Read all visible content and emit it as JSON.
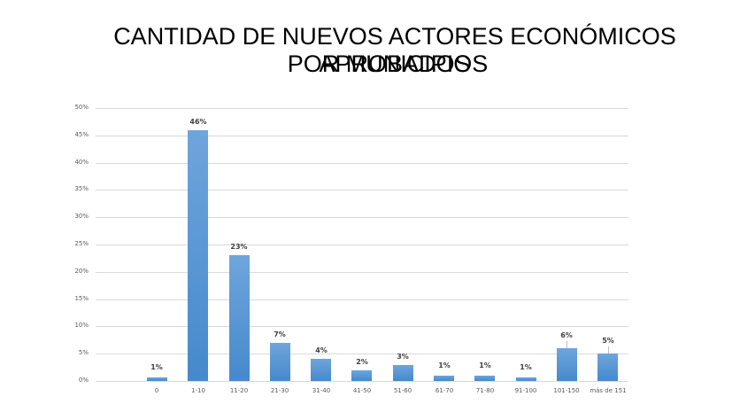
{
  "title": {
    "line1": "CANTIDAD DE NUEVOS ACTORES ECONÓMICOS APROBADOS",
    "line2": "POR MUNICIPIOS"
  },
  "colors": {
    "bar_top": "#6fa5dc",
    "bar_bottom": "#4589cc",
    "grid": "#d9d9d9",
    "label": "#404040"
  },
  "chart_data": {
    "type": "bar",
    "title": "CANTIDAD DE NUEVOS ACTORES ECONÓMICOS APROBADOS POR MUNICIPIOS",
    "xlabel": "",
    "ylabel": "",
    "ylim": [
      0,
      0.5
    ],
    "yticks": [
      "0%",
      "5%",
      "10%",
      "15%",
      "20%",
      "25%",
      "30%",
      "35%",
      "40%",
      "45%",
      "50%"
    ],
    "grid": true,
    "legend": null,
    "categories": [
      "0",
      "1-10",
      "11-20",
      "21-30",
      "31-40",
      "41-50",
      "51-60",
      "61-70",
      "71-80",
      "91-100",
      "101-150",
      "más de 151"
    ],
    "values": [
      0.6,
      46,
      23,
      7,
      4,
      2,
      3,
      1,
      1,
      0.6,
      6,
      5
    ],
    "data_labels": [
      "1%",
      "46%",
      "23%",
      "7%",
      "4%",
      "2%",
      "3%",
      "1%",
      "1%",
      "1%",
      "6%",
      "5%"
    ]
  }
}
